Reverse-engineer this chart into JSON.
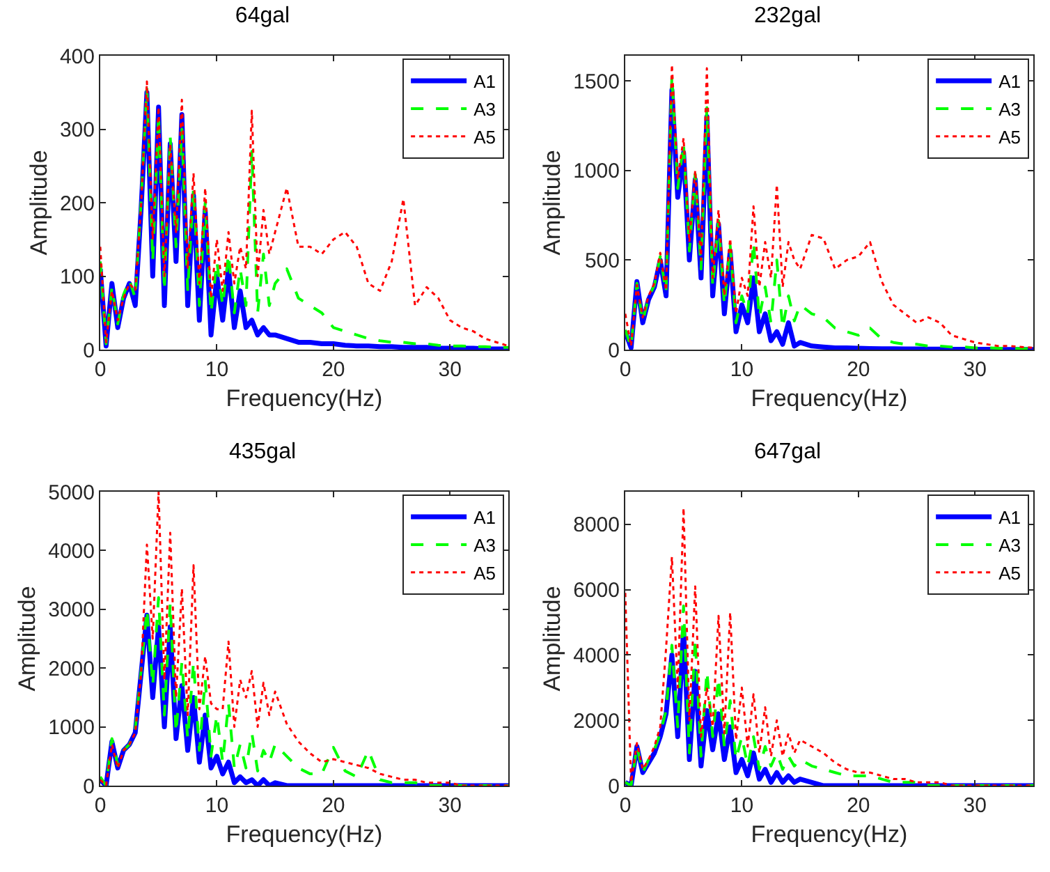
{
  "chart_data": [
    {
      "type": "line",
      "title": "64gal",
      "xlabel": "Frequency(Hz)",
      "ylabel": "Amplitude",
      "legend": "top right",
      "xlim": [
        0,
        35
      ],
      "xticks": [
        0,
        10,
        20,
        30
      ],
      "ylim": [
        0,
        400
      ],
      "yticks": [
        0,
        100,
        200,
        300,
        400
      ],
      "x": [
        0,
        0.5,
        1,
        1.5,
        2,
        2.5,
        3,
        3.5,
        4,
        4.5,
        5,
        5.5,
        6,
        6.5,
        7,
        7.5,
        8,
        8.5,
        9,
        9.5,
        10,
        10.5,
        11,
        11.5,
        12,
        12.5,
        13,
        13.5,
        14,
        14.5,
        15,
        16,
        17,
        18,
        19,
        20,
        21,
        22,
        23,
        24,
        25,
        26,
        27,
        28,
        29,
        30,
        31,
        32,
        33,
        34,
        35
      ],
      "series": [
        {
          "name": "A1",
          "color": "#0000ff",
          "line_style": "solid",
          "values": [
            110,
            5,
            90,
            30,
            70,
            90,
            60,
            190,
            350,
            100,
            330,
            60,
            280,
            120,
            320,
            60,
            210,
            40,
            190,
            20,
            100,
            40,
            110,
            30,
            80,
            30,
            40,
            20,
            30,
            20,
            20,
            15,
            10,
            10,
            8,
            8,
            6,
            5,
            5,
            4,
            4,
            3,
            3,
            3,
            2,
            2,
            2,
            2,
            1,
            1,
            1
          ]
        },
        {
          "name": "A3",
          "color": "#00ff00",
          "line_style": "dashed",
          "values": [
            120,
            8,
            85,
            35,
            75,
            95,
            70,
            200,
            355,
            120,
            320,
            80,
            290,
            140,
            300,
            80,
            220,
            60,
            200,
            50,
            120,
            60,
            130,
            50,
            110,
            60,
            270,
            50,
            130,
            60,
            90,
            110,
            70,
            60,
            50,
            30,
            25,
            20,
            15,
            12,
            10,
            10,
            8,
            8,
            6,
            5,
            5,
            4,
            4,
            3,
            3
          ]
        },
        {
          "name": "A5",
          "color": "#ff0000",
          "line_style": "dotted",
          "values": [
            140,
            10,
            80,
            40,
            70,
            90,
            80,
            195,
            365,
            150,
            330,
            100,
            280,
            160,
            340,
            110,
            240,
            90,
            220,
            70,
            150,
            80,
            160,
            90,
            140,
            110,
            325,
            100,
            190,
            130,
            160,
            220,
            140,
            140,
            130,
            150,
            160,
            140,
            90,
            80,
            120,
            205,
            60,
            85,
            70,
            40,
            30,
            25,
            15,
            10,
            5
          ]
        }
      ]
    },
    {
      "type": "line",
      "title": "232gal",
      "xlabel": "Frequency(Hz)",
      "ylabel": "Amplitude",
      "legend": "top right",
      "xlim": [
        0,
        35
      ],
      "xticks": [
        0,
        10,
        20,
        30
      ],
      "ylim": [
        0,
        1640
      ],
      "yticks": [
        0,
        500,
        1000,
        1500
      ],
      "x": [
        0,
        0.5,
        1,
        1.5,
        2,
        2.5,
        3,
        3.5,
        4,
        4.5,
        5,
        5.5,
        6,
        6.5,
        7,
        7.5,
        8,
        8.5,
        9,
        9.5,
        10,
        10.5,
        11,
        11.5,
        12,
        12.5,
        13,
        13.5,
        14,
        14.5,
        15,
        16,
        17,
        18,
        19,
        20,
        21,
        22,
        23,
        24,
        25,
        26,
        27,
        28,
        29,
        30,
        31,
        32,
        33,
        34,
        35
      ],
      "series": [
        {
          "name": "A1",
          "color": "#0000ff",
          "line_style": "solid",
          "values": [
            100,
            10,
            380,
            150,
            280,
            350,
            500,
            300,
            1450,
            850,
            1100,
            500,
            950,
            400,
            1300,
            300,
            700,
            200,
            550,
            100,
            250,
            150,
            400,
            100,
            200,
            50,
            100,
            30,
            150,
            20,
            40,
            20,
            15,
            10,
            10,
            8,
            6,
            5,
            5,
            4,
            4,
            3,
            3,
            2,
            2,
            2,
            2,
            1,
            1,
            1,
            1
          ]
        },
        {
          "name": "A3",
          "color": "#00ff00",
          "line_style": "dashed",
          "values": [
            110,
            15,
            370,
            160,
            290,
            360,
            520,
            320,
            1530,
            900,
            1150,
            550,
            980,
            450,
            1350,
            350,
            720,
            250,
            580,
            150,
            300,
            200,
            600,
            180,
            350,
            150,
            500,
            120,
            300,
            160,
            250,
            200,
            180,
            120,
            100,
            80,
            120,
            60,
            40,
            30,
            30,
            20,
            20,
            15,
            15,
            10,
            10,
            8,
            8,
            6,
            5
          ]
        },
        {
          "name": "A5",
          "color": "#ff0000",
          "line_style": "dotted",
          "values": [
            200,
            20,
            360,
            180,
            300,
            370,
            540,
            330,
            1590,
            950,
            1180,
            600,
            1000,
            500,
            1570,
            400,
            780,
            300,
            620,
            200,
            400,
            300,
            800,
            350,
            600,
            400,
            920,
            350,
            600,
            500,
            450,
            640,
            620,
            450,
            500,
            520,
            600,
            380,
            250,
            200,
            150,
            180,
            150,
            80,
            60,
            40,
            30,
            20,
            20,
            15,
            10
          ]
        }
      ]
    },
    {
      "type": "line",
      "title": "435gal",
      "xlabel": "Frequency(Hz)",
      "ylabel": "Amplitude",
      "legend": "top right",
      "xlim": [
        0,
        35
      ],
      "xticks": [
        0,
        10,
        20,
        30
      ],
      "ylim": [
        0,
        5000
      ],
      "yticks": [
        0,
        1000,
        2000,
        3000,
        4000,
        5000
      ],
      "x": [
        0,
        0.5,
        1,
        1.5,
        2,
        2.5,
        3,
        3.5,
        4,
        4.5,
        5,
        5.5,
        6,
        6.5,
        7,
        7.5,
        8,
        8.5,
        9,
        9.5,
        10,
        10.5,
        11,
        11.5,
        12,
        12.5,
        13,
        13.5,
        14,
        14.5,
        15,
        16,
        17,
        18,
        19,
        20,
        21,
        22,
        23,
        24,
        25,
        26,
        27,
        28,
        29,
        30,
        31,
        32,
        33,
        34,
        35
      ],
      "series": [
        {
          "name": "A1",
          "color": "#0000ff",
          "line_style": "solid",
          "values": [
            100,
            0,
            750,
            300,
            600,
            700,
            900,
            1900,
            2900,
            1500,
            2700,
            1000,
            2700,
            800,
            1700,
            600,
            1500,
            400,
            1200,
            300,
            500,
            200,
            400,
            50,
            150,
            50,
            100,
            0,
            100,
            0,
            50,
            0,
            0,
            0,
            0,
            0,
            0,
            0,
            0,
            0,
            0,
            0,
            0,
            0,
            0,
            0,
            0,
            0,
            0,
            0,
            0
          ]
        },
        {
          "name": "A3",
          "color": "#00ff00",
          "line_style": "dashed",
          "values": [
            150,
            0,
            800,
            350,
            600,
            700,
            950,
            1950,
            3000,
            1700,
            3200,
            1200,
            3100,
            900,
            2100,
            800,
            2100,
            600,
            1800,
            500,
            1200,
            400,
            1400,
            300,
            700,
            300,
            900,
            250,
            600,
            400,
            700,
            500,
            300,
            200,
            200,
            650,
            250,
            150,
            600,
            100,
            50,
            50,
            50,
            0,
            0,
            0,
            0,
            0,
            0,
            0,
            0
          ]
        },
        {
          "name": "A5",
          "color": "#ff0000",
          "line_style": "dotted",
          "values": [
            100,
            0,
            700,
            300,
            600,
            700,
            900,
            1900,
            4100,
            2500,
            5000,
            1800,
            4300,
            1500,
            3350,
            1200,
            3750,
            1300,
            2200,
            1400,
            1300,
            1300,
            2450,
            1000,
            1800,
            1500,
            1950,
            1000,
            1750,
            1200,
            1600,
            1050,
            750,
            550,
            400,
            450,
            400,
            350,
            300,
            200,
            150,
            100,
            100,
            50,
            50,
            50,
            0,
            0,
            0,
            0,
            0
          ]
        }
      ]
    },
    {
      "type": "line",
      "title": "647gal",
      "xlabel": "Frequency(Hz)",
      "ylabel": "Amplitude",
      "legend": "top right",
      "xlim": [
        0,
        35
      ],
      "xticks": [
        0,
        10,
        20,
        30
      ],
      "ylim": [
        0,
        9000
      ],
      "yticks": [
        0,
        2000,
        4000,
        6000,
        8000
      ],
      "x": [
        0,
        0.5,
        1,
        1.5,
        2,
        2.5,
        3,
        3.5,
        4,
        4.5,
        5,
        5.5,
        6,
        6.5,
        7,
        7.5,
        8,
        8.5,
        9,
        9.5,
        10,
        10.5,
        11,
        11.5,
        12,
        12.5,
        13,
        13.5,
        14,
        14.5,
        15,
        16,
        17,
        18,
        19,
        20,
        21,
        22,
        23,
        24,
        25,
        26,
        27,
        28,
        29,
        30,
        31,
        32,
        33,
        34,
        35
      ],
      "series": [
        {
          "name": "A1",
          "color": "#0000ff",
          "line_style": "solid",
          "values": [
            100,
            0,
            1200,
            400,
            700,
            1000,
            1500,
            2200,
            4000,
            1500,
            4800,
            800,
            3500,
            600,
            2300,
            1100,
            2200,
            800,
            1800,
            400,
            800,
            300,
            1000,
            200,
            500,
            100,
            400,
            100,
            300,
            100,
            200,
            100,
            0,
            0,
            0,
            0,
            0,
            0,
            0,
            0,
            0,
            0,
            0,
            0,
            0,
            0,
            0,
            0,
            0,
            0,
            0
          ]
        },
        {
          "name": "A3",
          "color": "#00ff00",
          "line_style": "dashed",
          "values": [
            100,
            0,
            1200,
            400,
            800,
            1100,
            1600,
            2300,
            4300,
            1800,
            5500,
            1000,
            4500,
            900,
            3500,
            1500,
            3300,
            1200,
            2600,
            800,
            1500,
            600,
            1500,
            500,
            1200,
            600,
            1000,
            500,
            900,
            600,
            800,
            600,
            500,
            400,
            300,
            300,
            300,
            200,
            100,
            100,
            100,
            0,
            0,
            0,
            0,
            0,
            0,
            0,
            0,
            0,
            0
          ]
        },
        {
          "name": "A5",
          "color": "#ff0000",
          "line_style": "dotted",
          "values": [
            5900,
            100,
            1300,
            500,
            800,
            1200,
            1800,
            4200,
            7000,
            3000,
            8500,
            2000,
            6100,
            1500,
            3000,
            1800,
            5200,
            1600,
            5300,
            1400,
            3000,
            1200,
            2800,
            1000,
            2400,
            900,
            2000,
            900,
            1600,
            1000,
            1400,
            1200,
            1000,
            700,
            500,
            400,
            400,
            300,
            200,
            200,
            100,
            100,
            100,
            0,
            0,
            0,
            0,
            0,
            0,
            0,
            0
          ]
        }
      ]
    }
  ]
}
